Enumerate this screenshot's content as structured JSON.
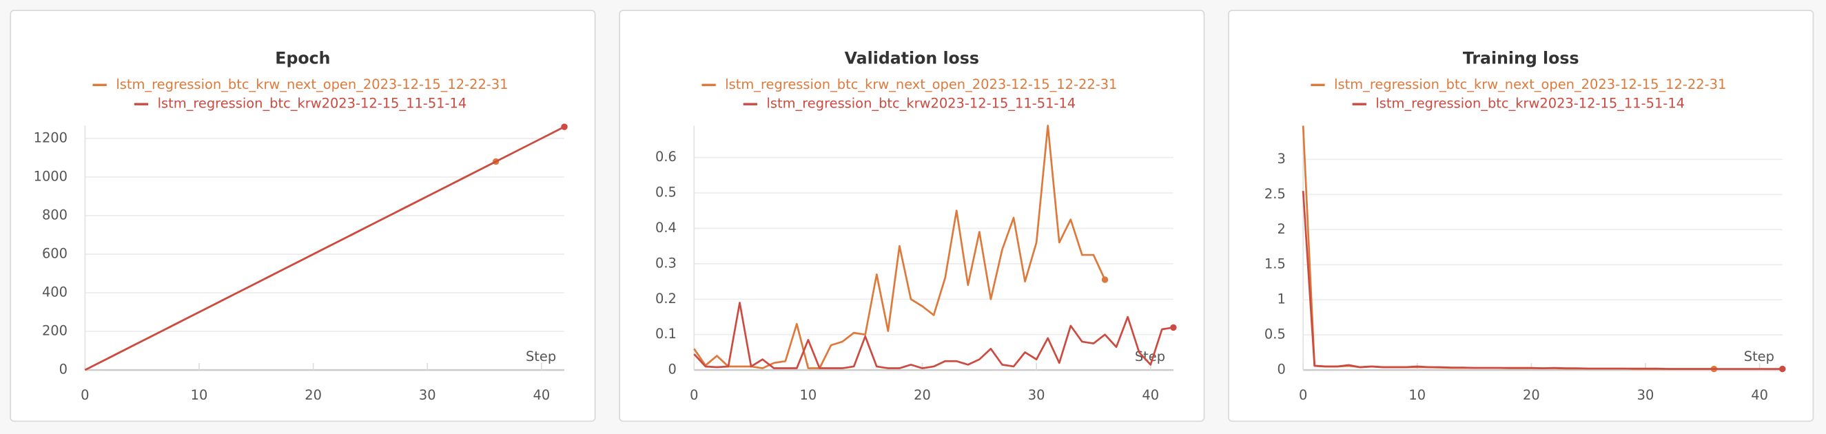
{
  "chart_data": [
    {
      "type": "line",
      "title": "Epoch",
      "x_label": "Step",
      "x": [
        0,
        1,
        2,
        3,
        4,
        5,
        6,
        7,
        8,
        9,
        10,
        11,
        12,
        13,
        14,
        15,
        16,
        17,
        18,
        19,
        20,
        21,
        22,
        23,
        24,
        25,
        26,
        27,
        28,
        29,
        30,
        31,
        32,
        33,
        34,
        35,
        36,
        37,
        38,
        39,
        40,
        41,
        42
      ],
      "series": [
        {
          "name": "lstm_regression_btc_krw_next_open_2023-12-15_12-22-31",
          "color": "#dd7a3b",
          "values": [
            0,
            30,
            60,
            90,
            120,
            150,
            180,
            210,
            240,
            270,
            300,
            330,
            360,
            390,
            420,
            450,
            480,
            510,
            540,
            570,
            600,
            630,
            660,
            690,
            720,
            750,
            780,
            810,
            840,
            870,
            900,
            930,
            960,
            990,
            1020,
            1050,
            1080,
            null,
            null,
            null,
            null,
            null,
            null
          ]
        },
        {
          "name": "lstm_regression_btc_krw2023-12-15_11-51-14",
          "color": "#cc4a40",
          "values": [
            0,
            30,
            60,
            90,
            120,
            150,
            180,
            210,
            240,
            270,
            300,
            330,
            360,
            390,
            420,
            450,
            480,
            510,
            540,
            570,
            600,
            630,
            660,
            690,
            720,
            750,
            780,
            810,
            840,
            870,
            900,
            930,
            960,
            990,
            1020,
            1050,
            1080,
            1110,
            1140,
            1170,
            1200,
            1230,
            1260
          ]
        }
      ],
      "xlim": [
        0,
        42
      ],
      "ylim": [
        0,
        1266
      ],
      "xticks": [
        0,
        10,
        20,
        30,
        40
      ],
      "yticks": [
        0,
        200,
        400,
        600,
        800,
        1000,
        1200
      ],
      "grid": true
    },
    {
      "type": "line",
      "title": "Validation loss",
      "x_label": "Step",
      "x": [
        0,
        1,
        2,
        3,
        4,
        5,
        6,
        7,
        8,
        9,
        10,
        11,
        12,
        13,
        14,
        15,
        16,
        17,
        18,
        19,
        20,
        21,
        22,
        23,
        24,
        25,
        26,
        27,
        28,
        29,
        30,
        31,
        32,
        33,
        34,
        35,
        36,
        37,
        38,
        39,
        40,
        41,
        42
      ],
      "series": [
        {
          "name": "lstm_regression_btc_krw_next_open_2023-12-15_12-22-31",
          "color": "#dd7a3b",
          "values": [
            0.06,
            0.013,
            0.04,
            0.01,
            0.01,
            0.01,
            0.005,
            0.02,
            0.025,
            0.13,
            0.005,
            0.005,
            0.07,
            0.08,
            0.105,
            0.1,
            0.27,
            0.11,
            0.35,
            0.2,
            0.18,
            0.155,
            0.26,
            0.45,
            0.24,
            0.39,
            0.2,
            0.34,
            0.43,
            0.25,
            0.36,
            0.69,
            0.36,
            0.425,
            0.325,
            0.325,
            0.255,
            null,
            null,
            null,
            null,
            null,
            null
          ]
        },
        {
          "name": "lstm_regression_btc_krw2023-12-15_11-51-14",
          "color": "#cc4a40",
          "values": [
            0.045,
            0.01,
            0.008,
            0.01,
            0.19,
            0.01,
            0.03,
            0.005,
            0.005,
            0.005,
            0.085,
            0.005,
            0.005,
            0.005,
            0.01,
            0.095,
            0.01,
            0.005,
            0.005,
            0.015,
            0.005,
            0.01,
            0.025,
            0.025,
            0.015,
            0.03,
            0.06,
            0.015,
            0.01,
            0.05,
            0.03,
            0.09,
            0.02,
            0.125,
            0.08,
            0.075,
            0.1,
            0.065,
            0.15,
            0.05,
            0.015,
            0.115,
            0.12
          ]
        }
      ],
      "xlim": [
        0,
        42
      ],
      "ylim": [
        0,
        0.69
      ],
      "xticks": [
        0,
        10,
        20,
        30,
        40
      ],
      "yticks": [
        0,
        0.1,
        0.2,
        0.3,
        0.4,
        0.5,
        0.6
      ],
      "grid": true
    },
    {
      "type": "line",
      "title": "Training loss",
      "x_label": "Step",
      "x": [
        0,
        1,
        2,
        3,
        4,
        5,
        6,
        7,
        8,
        9,
        10,
        11,
        12,
        13,
        14,
        15,
        16,
        17,
        18,
        19,
        20,
        21,
        22,
        23,
        24,
        25,
        26,
        27,
        28,
        29,
        30,
        31,
        32,
        33,
        34,
        35,
        36,
        37,
        38,
        39,
        40,
        41,
        42
      ],
      "series": [
        {
          "name": "lstm_regression_btc_krw_next_open_2023-12-15_12-22-31",
          "color": "#dd7a3b",
          "values": [
            3.48,
            0.06,
            0.05,
            0.05,
            0.06,
            0.04,
            0.05,
            0.04,
            0.04,
            0.04,
            0.04,
            0.04,
            0.035,
            0.03,
            0.03,
            0.03,
            0.03,
            0.03,
            0.025,
            0.025,
            0.025,
            0.025,
            0.025,
            0.02,
            0.02,
            0.02,
            0.02,
            0.02,
            0.02,
            0.015,
            0.015,
            0.015,
            0.015,
            0.015,
            0.015,
            0.015,
            0.015,
            null,
            null,
            null,
            null,
            null,
            null
          ]
        },
        {
          "name": "lstm_regression_btc_krw2023-12-15_11-51-14",
          "color": "#cc4a40",
          "values": [
            2.55,
            0.06,
            0.05,
            0.05,
            0.07,
            0.04,
            0.05,
            0.04,
            0.04,
            0.04,
            0.05,
            0.04,
            0.04,
            0.035,
            0.035,
            0.03,
            0.03,
            0.03,
            0.03,
            0.03,
            0.03,
            0.025,
            0.03,
            0.025,
            0.025,
            0.02,
            0.02,
            0.02,
            0.02,
            0.02,
            0.02,
            0.02,
            0.015,
            0.015,
            0.015,
            0.015,
            0.015,
            0.015,
            0.015,
            0.015,
            0.015,
            0.015,
            0.015
          ]
        }
      ],
      "xlim": [
        0,
        42
      ],
      "ylim": [
        0,
        3.48
      ],
      "xticks": [
        0,
        10,
        20,
        30,
        40
      ],
      "yticks": [
        0,
        0.5,
        1,
        1.5,
        2,
        2.5,
        3
      ],
      "grid": true
    }
  ]
}
